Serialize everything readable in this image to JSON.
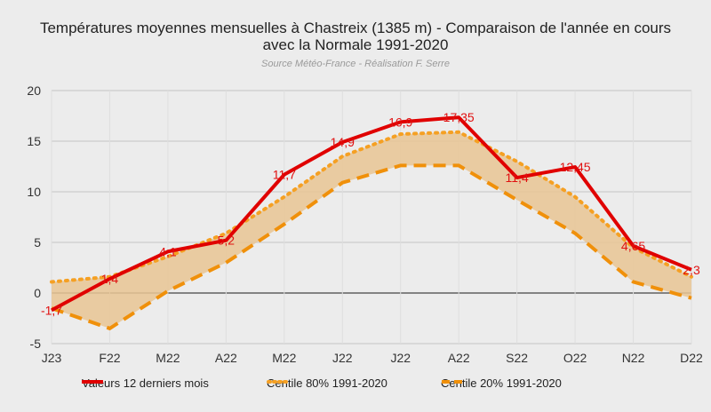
{
  "title_line1": "Températures moyennes mensuelles à Chastreix (1385 m) - Comparaison de l'année en cours",
  "title_line2": "avec la Normale 1991-2020",
  "subtitle": "Source Météo-France  - Réalisation F. Serre",
  "colors": {
    "current": "#e00000",
    "p80": "#f5a023",
    "p20": "#f0900a",
    "band": "#e9c594",
    "label": "#e01010"
  },
  "chart_data": {
    "type": "line",
    "categories": [
      "J23",
      "F22",
      "M22",
      "A22",
      "M22",
      "J22",
      "J22",
      "A22",
      "S22",
      "O22",
      "N22",
      "D22"
    ],
    "ylim": [
      -5,
      20
    ],
    "yticks": [
      -5,
      0,
      5,
      10,
      15,
      20
    ],
    "grid": true,
    "legend_position": "bottom",
    "shaded_band_between": [
      "Centile 20% 1991-2020",
      "Centile 80% 1991-2020"
    ],
    "series": [
      {
        "name": "Valeurs 12 derniers mois",
        "style": "solid",
        "values": [
          -1.7,
          1.4,
          4.1,
          5.2,
          11.7,
          14.9,
          16.9,
          17.35,
          11.4,
          12.45,
          4.65,
          2.3
        ],
        "labels": [
          "-1,7",
          "1,4",
          "4,1",
          "5,2",
          "11,7",
          "14,9",
          "16,9",
          "17,35",
          "11,4",
          "12,45",
          "4,65",
          "2,3"
        ]
      },
      {
        "name": "Centile 80% 1991-2020",
        "style": "dotted",
        "values": [
          1.1,
          1.6,
          3.6,
          5.9,
          9.5,
          13.5,
          15.7,
          15.9,
          13.0,
          9.5,
          4.5,
          1.6
        ]
      },
      {
        "name": "Centile 20% 1991-2020",
        "style": "dashed",
        "values": [
          -1.5,
          -3.5,
          0.2,
          3.0,
          6.8,
          10.9,
          12.6,
          12.6,
          9.2,
          5.9,
          1.1,
          -0.5
        ]
      }
    ]
  }
}
